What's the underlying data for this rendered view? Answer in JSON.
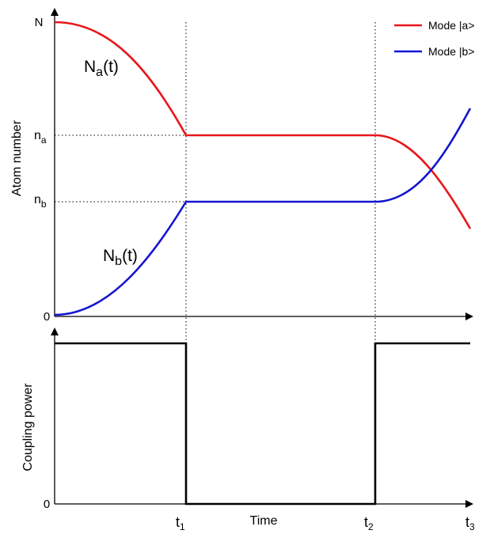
{
  "legend": {
    "items": [
      {
        "label": "Mode |a>",
        "color": "#e8161a"
      },
      {
        "label": "Mode |b>",
        "color": "#1414d2"
      }
    ]
  },
  "top_panel": {
    "ylabel": "Atom number",
    "ticks": {
      "N": "N",
      "na_main": "n",
      "na_sub": "a",
      "nb_main": "n",
      "nb_sub": "b",
      "zero": "0"
    },
    "curve_a_label": {
      "main": "N",
      "sub": "a",
      "suffix": "(t)"
    },
    "curve_b_label": {
      "main": "N",
      "sub": "b",
      "suffix": "(t)"
    }
  },
  "bottom_panel": {
    "ylabel": "Coupling power",
    "zero": "0",
    "xlabel": "Time",
    "t1": {
      "main": "t",
      "sub": "1"
    },
    "t2": {
      "main": "t",
      "sub": "2"
    },
    "t3": {
      "main": "t",
      "sub": "3"
    }
  },
  "colors": {
    "mode_a": "#e8161a",
    "mode_b": "#1414d2",
    "axis": "#000000"
  }
}
